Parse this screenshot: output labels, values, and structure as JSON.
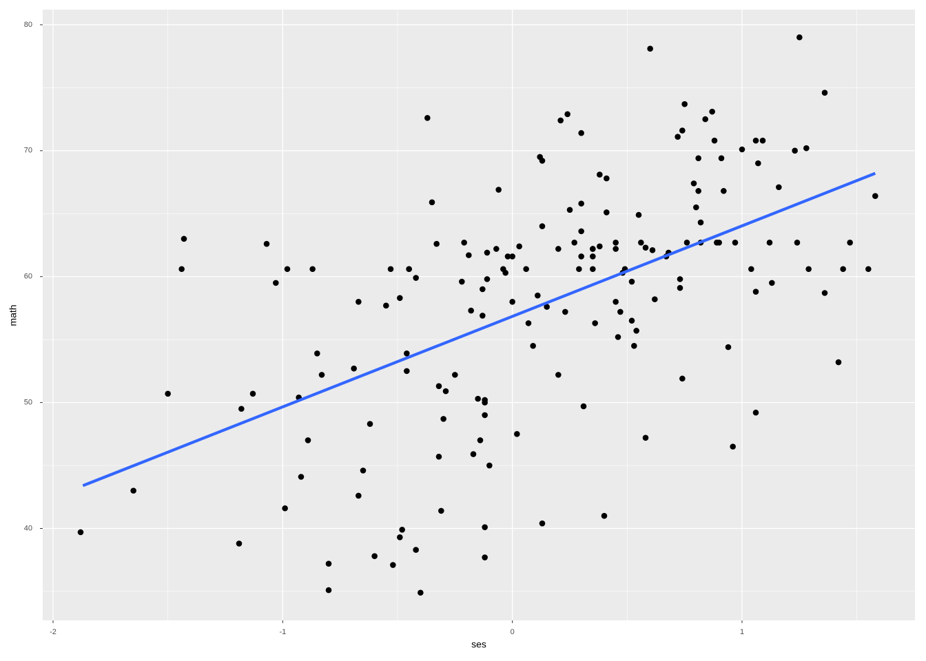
{
  "chart_data": {
    "type": "scatter",
    "x_label": "ses",
    "y_label": "math",
    "x": [
      -1.88,
      -1.65,
      -1.5,
      -1.44,
      -1.43,
      -1.19,
      -1.18,
      -1.13,
      -1.07,
      -1.03,
      -0.99,
      -0.98,
      -0.93,
      -0.92,
      -0.89,
      -0.87,
      -0.85,
      -0.83,
      -0.8,
      -0.8,
      -0.69,
      -0.67,
      -0.67,
      -0.65,
      -0.62,
      -0.6,
      -0.55,
      -0.53,
      -0.52,
      -0.49,
      -0.49,
      -0.48,
      -0.46,
      -0.46,
      -0.45,
      -0.45,
      -0.42,
      -0.42,
      -0.4,
      -0.37,
      -0.35,
      -0.33,
      -0.32,
      -0.32,
      -0.31,
      -0.3,
      -0.29,
      -0.25,
      -0.22,
      -0.21,
      -0.19,
      -0.18,
      -0.17,
      -0.15,
      -0.14,
      -0.13,
      -0.13,
      -0.12,
      -0.12,
      -0.12,
      -0.12,
      -0.12,
      -0.11,
      -0.11,
      -0.1,
      -0.07,
      -0.06,
      -0.04,
      -0.03,
      -0.02,
      0.0,
      0.0,
      0.02,
      0.03,
      0.06,
      0.07,
      0.09,
      0.11,
      0.12,
      0.13,
      0.13,
      0.13,
      0.15,
      0.2,
      0.2,
      0.21,
      0.23,
      0.24,
      0.25,
      0.27,
      0.29,
      0.3,
      0.3,
      0.3,
      0.3,
      0.31,
      0.35,
      0.35,
      0.35,
      0.35,
      0.36,
      0.38,
      0.38,
      0.4,
      0.41,
      0.41,
      0.45,
      0.45,
      0.45,
      0.46,
      0.47,
      0.48,
      0.49,
      0.52,
      0.52,
      0.53,
      0.54,
      0.55,
      0.56,
      0.58,
      0.58,
      0.6,
      0.61,
      0.62,
      0.67,
      0.68,
      0.72,
      0.73,
      0.73,
      0.74,
      0.74,
      0.75,
      0.76,
      0.79,
      0.8,
      0.81,
      0.81,
      0.82,
      0.82,
      0.84,
      0.87,
      0.88,
      0.89,
      0.9,
      0.91,
      0.92,
      0.94,
      0.96,
      0.97,
      1.0,
      1.04,
      1.06,
      1.06,
      1.06,
      1.07,
      1.09,
      1.12,
      1.13,
      1.16,
      1.23,
      1.24,
      1.25,
      1.28,
      1.29,
      1.36,
      1.36,
      1.42,
      1.44,
      1.47,
      1.55,
      1.58
    ],
    "values": [
      39.7,
      43.0,
      50.7,
      60.6,
      63.0,
      38.8,
      49.5,
      50.7,
      62.6,
      59.5,
      41.6,
      60.6,
      50.4,
      44.1,
      47.0,
      60.6,
      53.9,
      52.2,
      37.2,
      35.1,
      52.7,
      58.0,
      42.6,
      44.6,
      48.3,
      37.8,
      57.7,
      60.6,
      37.1,
      39.3,
      58.3,
      39.9,
      53.9,
      52.5,
      60.6,
      60.6,
      38.3,
      59.9,
      34.9,
      72.6,
      65.9,
      62.6,
      51.3,
      45.7,
      41.4,
      48.7,
      50.9,
      52.2,
      59.6,
      62.7,
      61.7,
      57.3,
      45.9,
      50.3,
      47.0,
      56.9,
      59.0,
      50.2,
      50.0,
      49.0,
      40.1,
      37.7,
      59.8,
      61.9,
      45.0,
      62.2,
      66.9,
      60.6,
      60.3,
      61.6,
      61.6,
      58.0,
      47.5,
      62.4,
      60.6,
      56.3,
      54.5,
      58.5,
      69.5,
      64.0,
      69.2,
      40.4,
      57.6,
      52.2,
      62.2,
      72.4,
      57.2,
      72.9,
      65.3,
      62.7,
      60.6,
      71.4,
      65.8,
      63.6,
      61.6,
      49.7,
      61.6,
      62.2,
      60.6,
      62.2,
      56.3,
      62.4,
      68.1,
      41.0,
      65.1,
      67.8,
      62.7,
      58.0,
      62.2,
      55.2,
      57.2,
      60.3,
      60.6,
      56.5,
      59.6,
      54.5,
      55.7,
      64.9,
      62.7,
      62.3,
      47.2,
      78.1,
      62.1,
      58.2,
      61.6,
      61.9,
      71.1,
      59.1,
      59.8,
      71.6,
      51.9,
      73.7,
      62.7,
      67.4,
      65.5,
      69.4,
      66.8,
      64.3,
      62.7,
      72.5,
      73.1,
      70.8,
      62.7,
      62.7,
      69.4,
      66.8,
      54.4,
      46.5,
      62.7,
      70.1,
      60.6,
      58.8,
      49.2,
      70.8,
      69.0,
      70.8,
      62.7,
      59.5,
      67.1,
      70.0,
      62.7,
      79.0,
      70.2,
      60.6,
      58.7,
      74.6,
      53.2,
      60.6,
      62.7,
      60.6,
      66.4
    ],
    "color": "#000000",
    "fit": {
      "x": [
        -1.87,
        1.58
      ],
      "values": [
        43.4,
        68.2
      ],
      "color": "#3366ff"
    },
    "xlim": [
      -2.045,
      1.753
    ],
    "ylim": [
      32.7,
      81.2
    ],
    "xticks": [
      -2,
      -1,
      0,
      1
    ],
    "yticks": [
      40,
      50,
      60,
      70,
      80
    ],
    "grid": true
  }
}
